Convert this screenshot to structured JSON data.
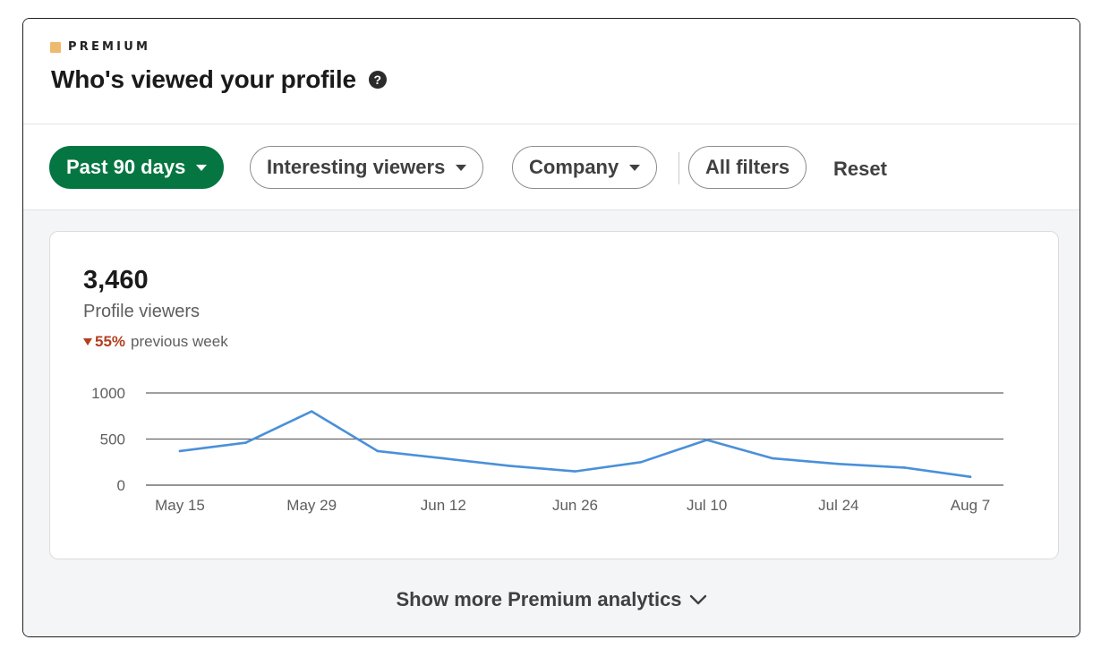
{
  "header": {
    "premium_label": "PREMIUM",
    "title": "Who's viewed your profile",
    "help_icon": "question-circle-icon"
  },
  "filters": {
    "time_range": "Past 90 days",
    "interesting_viewers": "Interesting viewers",
    "company": "Company",
    "all_filters": "All filters",
    "reset": "Reset"
  },
  "stats": {
    "count": "3,460",
    "label": "Profile viewers",
    "change_pct": "55%",
    "change_text": "previous week",
    "change_direction": "down"
  },
  "footer": {
    "show_more": "Show more Premium analytics"
  },
  "colors": {
    "accent_green": "#057642",
    "line_blue": "#4a90d9",
    "negative_red": "#b24020",
    "premium_gold": "#e7a33e"
  },
  "chart_data": {
    "type": "line",
    "x": [
      "May 15",
      "May 22",
      "May 29",
      "Jun 5",
      "Jun 12",
      "Jun 19",
      "Jun 26",
      "Jul 3",
      "Jul 10",
      "Jul 17",
      "Jul 24",
      "Jul 31",
      "Aug 7"
    ],
    "x_tick_labels": [
      "May 15",
      "May 29",
      "Jun 12",
      "Jun 26",
      "Jul 10",
      "Jul 24",
      "Aug 7"
    ],
    "series": [
      {
        "values": [
          370,
          460,
          800,
          370,
          290,
          210,
          150,
          250,
          490,
          290,
          230,
          190,
          90
        ]
      }
    ],
    "y_ticks": [
      "1000",
      "500",
      "0"
    ],
    "ylim": [
      0,
      1000
    ],
    "grid": true
  }
}
